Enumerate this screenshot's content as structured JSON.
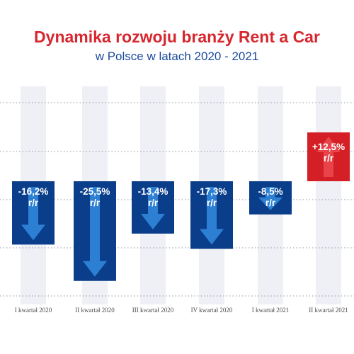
{
  "header": {
    "title": "Dynamika rozwoju branży Rent a Car",
    "subtitle": "w Polsce w latach 2020 - 2021"
  },
  "colors": {
    "title": "#d7262d",
    "subtitle": "#1b4a9c",
    "negative_bar": "#0b3e8a",
    "positive_bar": "#d41f26",
    "arrow_negative": "#2c7fd3",
    "arrow_positive": "#e8434a",
    "column_band": "#eef0f5",
    "grid": "#8f96a6"
  },
  "chart_data": {
    "type": "bar",
    "title": "Dynamika rozwoju branży Rent a Car",
    "subtitle": "w Polsce w latach 2020 - 2021",
    "xlabel": "",
    "ylabel": "",
    "unit": "% r/r",
    "grid": true,
    "legend": "none",
    "ylim": [
      -31,
      17
    ],
    "categories": [
      "I kwartał 2020",
      "II kwartał 2020",
      "III kwartał 2020",
      "IV kwartał 2020",
      "I kwartał 2021",
      "II kwartał 2021"
    ],
    "values": [
      -16.2,
      -25.5,
      -13.4,
      -17.3,
      -8.5,
      12.5
    ],
    "data_labels": [
      "-16,2%",
      "-25,5%",
      "-13,4%",
      "-17,3%",
      "-8,5%",
      "+12,5%"
    ],
    "label_suffix": "r/r"
  }
}
